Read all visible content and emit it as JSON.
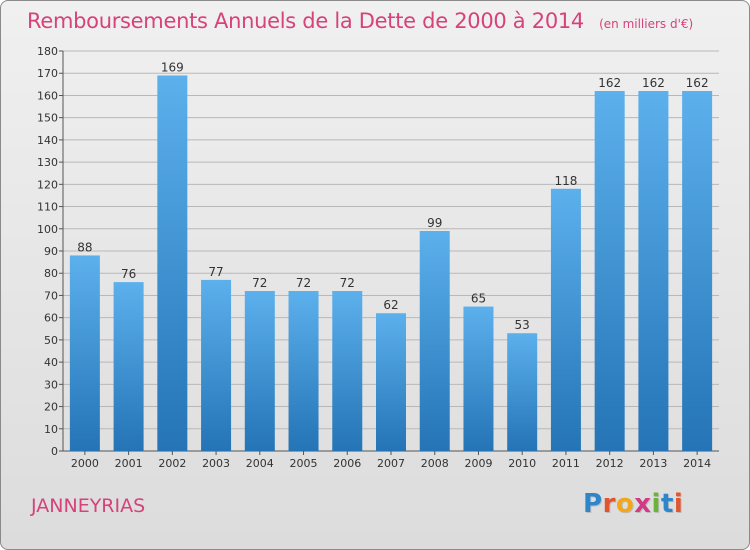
{
  "title": "Remboursements Annuels de la Dette de 2000 à 2014",
  "unit": "(en milliers d'€)",
  "commune": "JANNEYRIAS",
  "logo": "Proxiti",
  "colors": {
    "bar": "#3b8fd6",
    "title": "#d6427a",
    "grid": "#b8b8b8"
  },
  "chart_data": {
    "type": "bar",
    "title": "Remboursements Annuels de la Dette de 2000 à 2014",
    "xlabel": "",
    "ylabel": "",
    "categories": [
      "2000",
      "2001",
      "2002",
      "2003",
      "2004",
      "2005",
      "2006",
      "2007",
      "2008",
      "2009",
      "2010",
      "2011",
      "2012",
      "2013",
      "2014"
    ],
    "values": [
      88,
      76,
      169,
      77,
      72,
      72,
      72,
      62,
      99,
      65,
      53,
      118,
      162,
      162,
      162
    ],
    "ylim": [
      0,
      180
    ],
    "yticks": [
      0,
      10,
      20,
      30,
      40,
      50,
      60,
      70,
      80,
      90,
      100,
      110,
      120,
      130,
      140,
      150,
      160,
      170,
      180
    ],
    "grid": true,
    "legend": "none"
  }
}
